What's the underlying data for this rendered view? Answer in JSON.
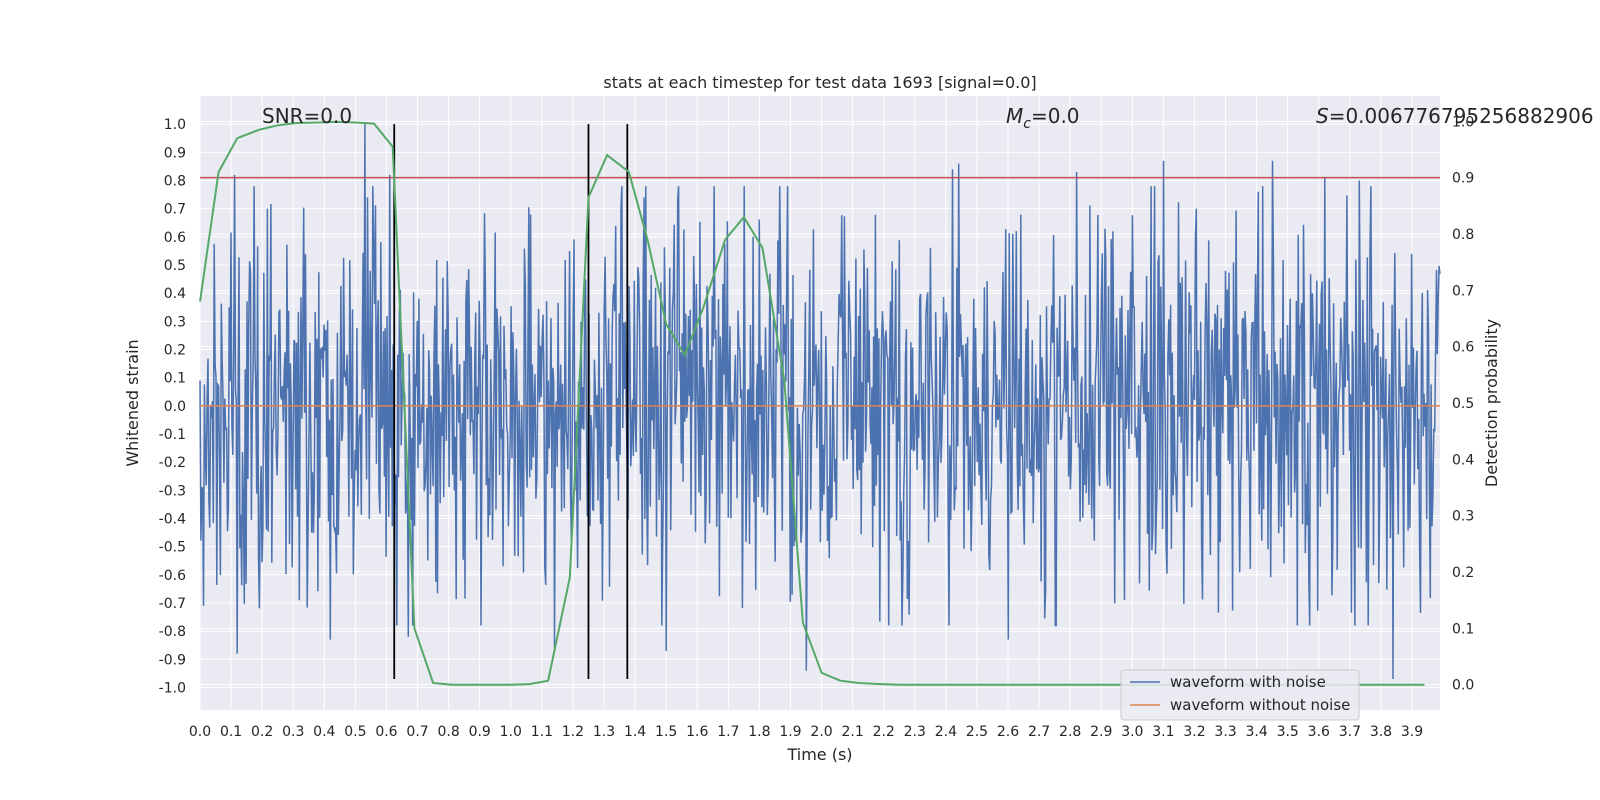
{
  "chart_data": {
    "type": "line",
    "title": "stats at each timestep for test data 1693 [signal=0.0]",
    "xlabel": "Time (s)",
    "ylabel": "Whitened strain",
    "y2label": "Detection probability",
    "xlim": [
      0.0,
      3.99
    ],
    "ylim": [
      -1.08,
      1.1
    ],
    "y2lim": [
      -0.045,
      1.045
    ],
    "grid": true,
    "x_ticks": [
      "0.0",
      "0.1",
      "0.2",
      "0.3",
      "0.4",
      "0.5",
      "0.6",
      "0.7",
      "0.8",
      "0.9",
      "1.0",
      "1.1",
      "1.2",
      "1.3",
      "1.4",
      "1.5",
      "1.6",
      "1.7",
      "1.8",
      "1.9",
      "2.0",
      "2.1",
      "2.2",
      "2.3",
      "2.4",
      "2.5",
      "2.6",
      "2.7",
      "2.8",
      "2.9",
      "3.0",
      "3.1",
      "3.2",
      "3.3",
      "3.4",
      "3.5",
      "3.6",
      "3.7",
      "3.8",
      "3.9"
    ],
    "y_ticks": [
      "1.0",
      "0.9",
      "0.8",
      "0.7",
      "0.6",
      "0.5",
      "0.4",
      "0.3",
      "0.2",
      "0.1",
      "0.0",
      "-0.1",
      "-0.2",
      "-0.3",
      "-0.4",
      "-0.5",
      "-0.6",
      "-0.7",
      "-0.8",
      "-0.9",
      "-1.0"
    ],
    "y2_ticks": [
      "1.0",
      "0.9",
      "0.8",
      "0.7",
      "0.6",
      "0.5",
      "0.4",
      "0.3",
      "0.2",
      "0.1",
      "0.0"
    ],
    "annotations": {
      "snr": "SNR=0.0",
      "mc_symbol": "M",
      "mc_sub": "c",
      "mc_value": "=0.0",
      "s_symbol": "S",
      "s_value": "=0.006776795256882906"
    },
    "threshold_line": {
      "y2": 0.9,
      "color": "#c44e52"
    },
    "vertical_lines": {
      "x": [
        0.625,
        1.25,
        1.375
      ],
      "ymin": -0.97,
      "ymax": 1.0
    },
    "noise_seed": 1693,
    "noise_samples": 1400,
    "noise_amplitude": 0.35,
    "spikes": [
      {
        "x": 0.53,
        "y": 1.0
      },
      {
        "x": 0.61,
        "y": 0.82
      },
      {
        "x": 0.11,
        "y": 0.82
      },
      {
        "x": 0.12,
        "y": -0.88
      },
      {
        "x": 0.42,
        "y": -0.83
      },
      {
        "x": 1.43,
        "y": 0.74
      },
      {
        "x": 2.42,
        "y": 0.84
      },
      {
        "x": 2.44,
        "y": 0.86
      },
      {
        "x": 2.82,
        "y": 0.83
      },
      {
        "x": 3.1,
        "y": 0.87
      },
      {
        "x": 3.45,
        "y": 0.87
      },
      {
        "x": 3.62,
        "y": 0.81
      },
      {
        "x": 3.73,
        "y": 0.8
      },
      {
        "x": 1.5,
        "y": -0.87
      },
      {
        "x": 1.95,
        "y": -0.94
      },
      {
        "x": 2.6,
        "y": -0.83
      },
      {
        "x": 3.84,
        "y": -0.97
      },
      {
        "x": 0.67,
        "y": -0.82
      },
      {
        "x": 1.14,
        "y": -0.86
      },
      {
        "x": 0.01,
        "y": -0.71
      }
    ],
    "series": [
      {
        "name": "waveform with noise",
        "color": "#4c72b0",
        "kind": "noise"
      },
      {
        "name": "waveform without noise",
        "color": "#dd8452",
        "kind": "flat",
        "value": 0.0
      },
      {
        "name": "Detection probability",
        "color": "#55a868",
        "axis": "y2",
        "x": [
          0.0,
          0.06,
          0.12,
          0.19,
          0.25,
          0.31,
          0.38,
          0.44,
          0.5,
          0.56,
          0.62,
          0.69,
          0.75,
          0.81,
          0.88,
          0.94,
          1.0,
          1.06,
          1.12,
          1.19,
          1.25,
          1.31,
          1.38,
          1.44,
          1.5,
          1.56,
          1.62,
          1.69,
          1.75,
          1.81,
          1.88,
          1.94,
          2.0,
          2.06,
          2.12,
          2.19,
          2.25,
          2.31,
          2.38,
          2.44,
          2.5,
          2.56,
          2.62,
          2.69,
          2.75,
          2.81,
          2.88,
          2.94,
          3.0,
          3.06,
          3.12,
          3.19,
          3.25,
          3.31,
          3.38,
          3.44,
          3.5,
          3.56,
          3.62,
          3.69,
          3.75,
          3.81,
          3.88,
          3.94
        ],
        "values": [
          0.68,
          0.91,
          0.97,
          0.985,
          0.993,
          0.997,
          0.998,
          0.999,
          0.998,
          0.996,
          0.955,
          0.1,
          0.003,
          0.0,
          0.0,
          0.0,
          0.0,
          0.001,
          0.007,
          0.19,
          0.865,
          0.94,
          0.91,
          0.79,
          0.64,
          0.585,
          0.67,
          0.79,
          0.83,
          0.775,
          0.54,
          0.11,
          0.021,
          0.007,
          0.003,
          0.001,
          0.0,
          0.0,
          0.0,
          0.0,
          0.0,
          0.0,
          0.0,
          0.0,
          0.0,
          0.0,
          0.0,
          0.0,
          0.0,
          0.0,
          0.0,
          0.0,
          0.0,
          0.0,
          0.0,
          0.0,
          0.0,
          0.0,
          0.0,
          0.0,
          0.0,
          0.0,
          0.0,
          0.0
        ]
      }
    ],
    "legend": {
      "position": "lower-right",
      "entries": [
        {
          "label": "waveform with noise",
          "color": "#4c72b0"
        },
        {
          "label": "waveform without noise",
          "color": "#dd8452"
        }
      ]
    }
  }
}
